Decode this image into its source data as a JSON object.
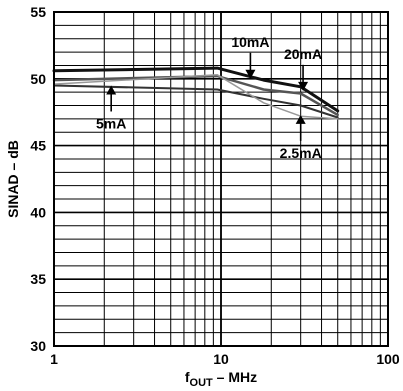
{
  "chart_data": {
    "type": "line",
    "title": "",
    "xlabel_main": "f",
    "xlabel_sub": "OUT",
    "xlabel_rest": " – MHz",
    "ylabel": "SINAD – dB",
    "x_scale": "log",
    "xlim": [
      1,
      100
    ],
    "ylim": [
      30,
      55
    ],
    "x_ticks": [
      1,
      10,
      100
    ],
    "x_tick_labels": [
      "1",
      "10",
      "100"
    ],
    "y_ticks": [
      30,
      35,
      40,
      45,
      50,
      55
    ],
    "y_tick_labels": [
      "30",
      "35",
      "40",
      "45",
      "50",
      "55"
    ],
    "grid": true,
    "series": [
      {
        "name": "10mA",
        "color": "#111111",
        "width": 3,
        "x": [
          1,
          9.5,
          18,
          30,
          50
        ],
        "y": [
          50.6,
          50.8,
          49.9,
          49.4,
          47.6
        ]
      },
      {
        "name": "20mA",
        "color": "#555555",
        "width": 2.5,
        "x": [
          1,
          9.5,
          18,
          30,
          50
        ],
        "y": [
          49.9,
          50.2,
          49.2,
          48.9,
          47.3
        ]
      },
      {
        "name": "5mA",
        "color": "#333333",
        "width": 2,
        "x": [
          1,
          9.5,
          18,
          30,
          50
        ],
        "y": [
          49.5,
          49.2,
          48.5,
          48.0,
          47.1
        ]
      },
      {
        "name": "2.5mA",
        "color": "#999999",
        "width": 1.5,
        "x": [
          1,
          9.5,
          18,
          30,
          50
        ],
        "y": [
          49.6,
          50.3,
          48.2,
          47.2,
          47.0
        ]
      }
    ],
    "annotations": [
      {
        "label": "10mA",
        "arrow_x": 15,
        "arrow_y": 50.0,
        "direction": "down"
      },
      {
        "label": "20mA",
        "arrow_x": 31,
        "arrow_y": 49.1,
        "direction": "down"
      },
      {
        "label": "5mA",
        "arrow_x": 2.2,
        "arrow_y": 49.5,
        "direction": "up"
      },
      {
        "label": "2.5mA",
        "arrow_x": 30,
        "arrow_y": 47.3,
        "direction": "up"
      }
    ]
  }
}
